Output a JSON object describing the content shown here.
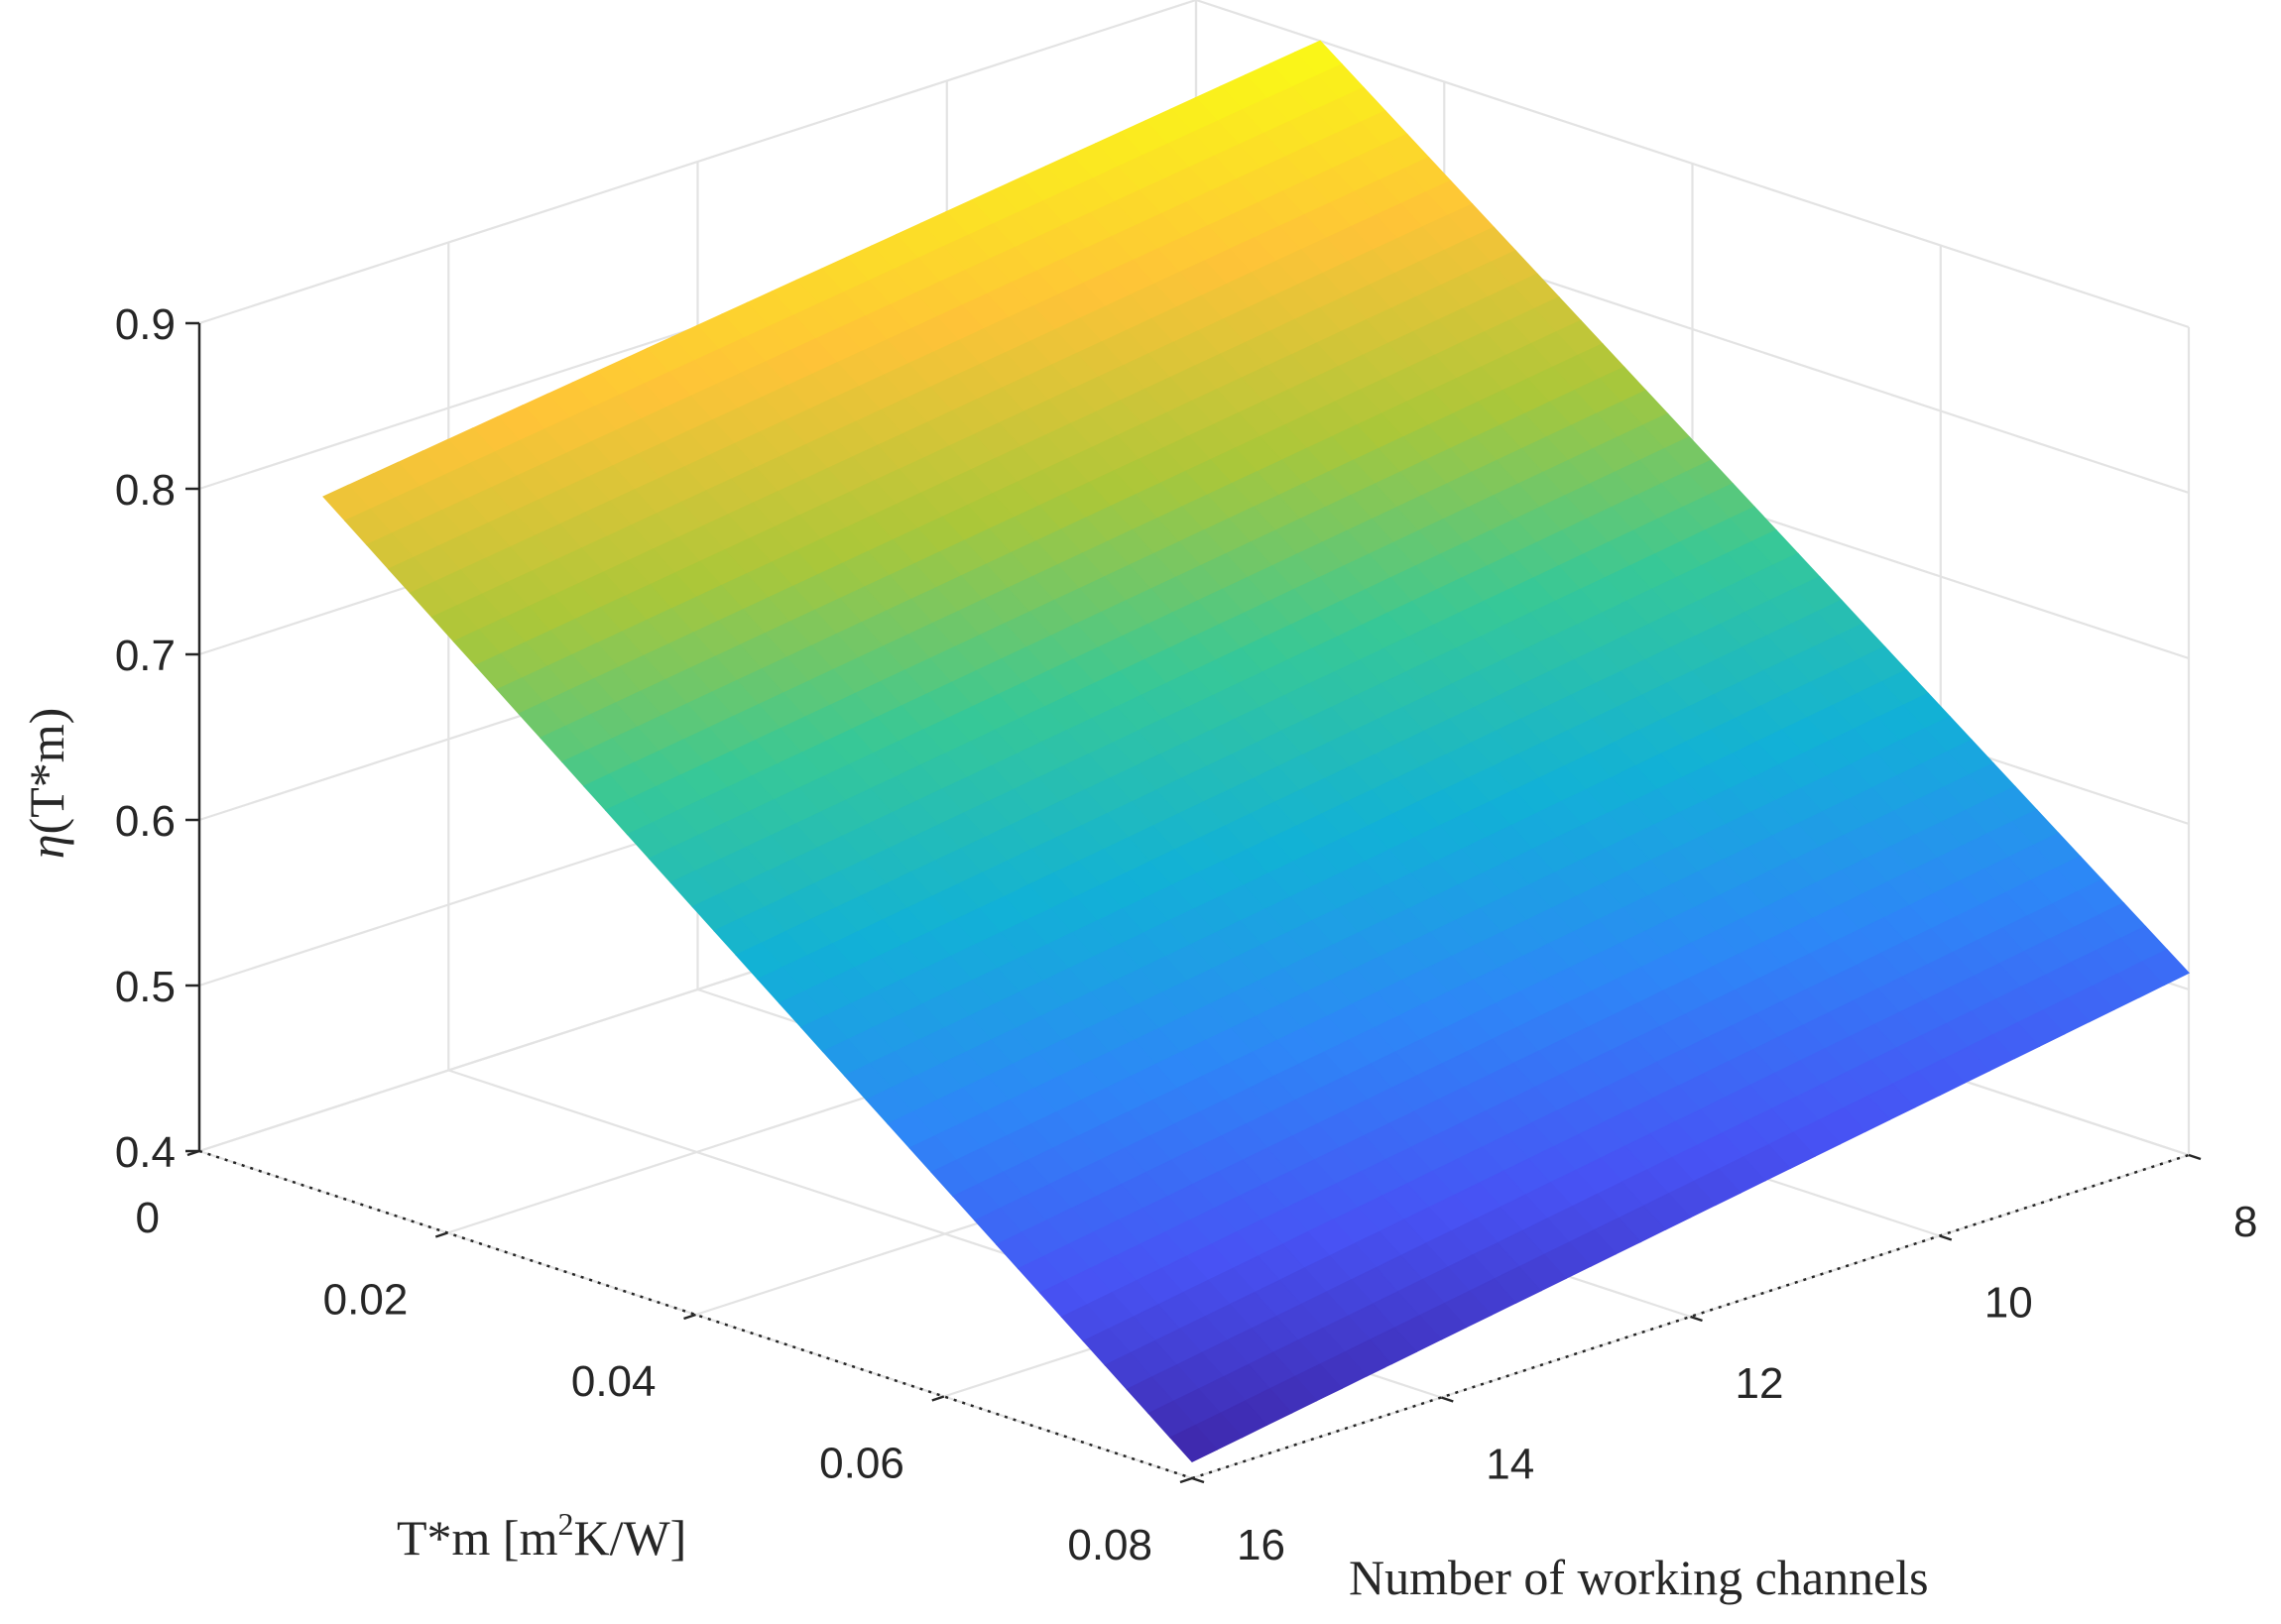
{
  "chart_data": {
    "type": "surface",
    "colormap": "parula",
    "grid": true,
    "x": {
      "label_main": "T*m [m",
      "label_sup": "2",
      "label_tail": "K/W]",
      "ticks": [
        0,
        0.02,
        0.04,
        0.06,
        0.08
      ],
      "tick_labels": [
        "0",
        "0.02",
        "0.04",
        "0.06",
        "0.08"
      ],
      "range": [
        0,
        0.08
      ]
    },
    "y": {
      "label": "Number of working channels",
      "ticks": [
        8,
        10,
        12,
        14,
        16
      ],
      "tick_labels": [
        "8",
        "10",
        "12",
        "14",
        "16"
      ],
      "range": [
        8,
        16
      ]
    },
    "z": {
      "label_greek": "η",
      "label_rest": "(T*m)",
      "ticks": [
        0.4,
        0.5,
        0.6,
        0.7,
        0.8,
        0.9
      ],
      "tick_labels": [
        "0.4",
        "0.5",
        "0.6",
        "0.7",
        "0.8",
        "0.9"
      ],
      "range": [
        0.4,
        0.9
      ]
    },
    "surface": {
      "x_domain": [
        0.01,
        0.08
      ],
      "y_domain": [
        8,
        16
      ],
      "corner_values": [
        {
          "x": 0.01,
          "y": 16,
          "z": 0.82
        },
        {
          "x": 0.01,
          "y": 8,
          "z": 0.9
        },
        {
          "x": 0.08,
          "y": 8,
          "z": 0.51
        },
        {
          "x": 0.08,
          "y": 16,
          "z": 0.41
        }
      ]
    }
  }
}
